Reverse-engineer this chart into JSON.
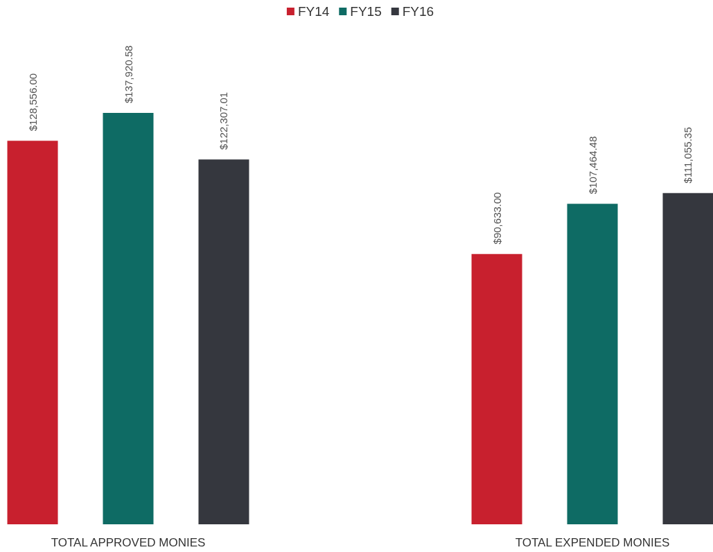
{
  "chart_data": {
    "type": "bar",
    "tick_labels": "x",
    "categories": [
      "TOTAL APPROVED MONIES",
      "TOTAL EXPENDED MONIES"
    ],
    "series": [
      {
        "name": "FY14",
        "color": "#c8202e",
        "values": [
          128556.0,
          90633.0
        ],
        "value_labels": [
          "$128,556.00",
          "$90,633.00"
        ]
      },
      {
        "name": "FY15",
        "color": "#0e6b64",
        "values": [
          137920.58,
          107464.48
        ],
        "value_labels": [
          "$137,920.58",
          "$107,464.48"
        ]
      },
      {
        "name": "FY16",
        "color": "#35373e",
        "values": [
          122307.01,
          111055.35
        ],
        "value_labels": [
          "$122,307.01",
          "$111,055.35"
        ]
      }
    ],
    "legend": "top"
  }
}
